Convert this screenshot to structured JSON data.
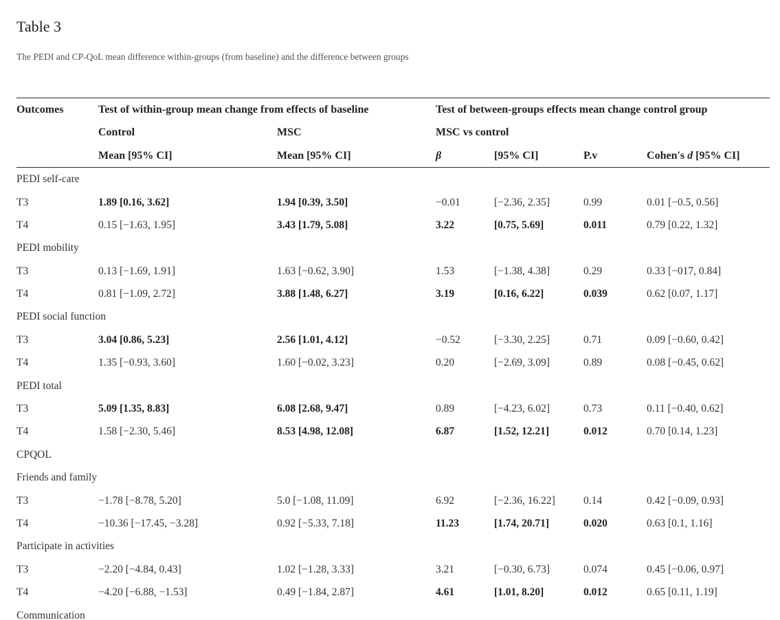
{
  "page": {
    "title": "Table 3",
    "caption": "The PEDI and CP-QoL mean difference within-groups (from baseline) and the difference between groups"
  },
  "colors": {
    "text": "#333333",
    "bold_text": "#222222",
    "rule": "#2b2b2b",
    "background": "#ffffff"
  },
  "table": {
    "header": {
      "outcomes": "Outcomes",
      "within_group_span": "Test of within-group mean change from effects of baseline",
      "between_groups_span": "Test of between-groups effects mean change control group",
      "control": "Control",
      "msc": "MSC",
      "msc_vs_control": "MSC vs control",
      "mean_ci_control": "Mean [95% CI]",
      "mean_ci_msc": "Mean [95% CI]",
      "beta": "β",
      "ci": "[95% CI]",
      "pv": "P.v",
      "cohens_prefix": "Cohen's ",
      "cohens_d": "d",
      "cohens_suffix": " [95% CI]"
    },
    "rows": [
      {
        "type": "section",
        "label": "PEDI self-care"
      },
      {
        "type": "data",
        "label": "T3",
        "cells": [
          {
            "t": "1.89 [0.16, 3.62]",
            "b": true
          },
          {
            "t": "1.94 [0.39, 3.50]",
            "b": true
          },
          {
            "t": "−0.01",
            "b": false
          },
          {
            "t": "[−2.36, 2.35]",
            "b": false
          },
          {
            "t": "0.99",
            "b": false
          },
          {
            "t": "0.01 [−0.5, 0.56]",
            "b": false
          }
        ]
      },
      {
        "type": "data",
        "label": "T4",
        "cells": [
          {
            "t": "0.15 [−1.63, 1.95]",
            "b": false
          },
          {
            "t": "3.43 [1.79, 5.08]",
            "b": true
          },
          {
            "t": "3.22",
            "b": true
          },
          {
            "t": "[0.75, 5.69]",
            "b": true
          },
          {
            "t": "0.011",
            "b": true
          },
          {
            "t": "0.79 [0.22, 1.32]",
            "b": false
          }
        ]
      },
      {
        "type": "section",
        "label": "PEDI mobility"
      },
      {
        "type": "data",
        "label": "T3",
        "cells": [
          {
            "t": "0.13 [−1.69, 1.91]",
            "b": false
          },
          {
            "t": "1.63 [−0.62, 3.90]",
            "b": false
          },
          {
            "t": "1.53",
            "b": false
          },
          {
            "t": "[−1.38, 4.38]",
            "b": false
          },
          {
            "t": "0.29",
            "b": false
          },
          {
            "t": "0.33 [−017, 0.84]",
            "b": false
          }
        ]
      },
      {
        "type": "data",
        "label": "T4",
        "cells": [
          {
            "t": "0.81 [−1.09, 2.72]",
            "b": false
          },
          {
            "t": "3.88 [1.48, 6.27]",
            "b": true
          },
          {
            "t": "3.19",
            "b": true
          },
          {
            "t": "[0.16, 6.22]",
            "b": true
          },
          {
            "t": "0.039",
            "b": true
          },
          {
            "t": "0.62 [0.07, 1.17]",
            "b": false
          }
        ]
      },
      {
        "type": "section",
        "label": "PEDI social function"
      },
      {
        "type": "data",
        "label": "T3",
        "cells": [
          {
            "t": "3.04 [0.86, 5.23]",
            "b": true
          },
          {
            "t": "2.56 [1.01, 4.12]",
            "b": true
          },
          {
            "t": "−0.52",
            "b": false
          },
          {
            "t": "[−3.30, 2.25]",
            "b": false
          },
          {
            "t": "0.71",
            "b": false
          },
          {
            "t": "0.09 [−0.60, 0.42]",
            "b": false
          }
        ]
      },
      {
        "type": "data",
        "label": "T4",
        "cells": [
          {
            "t": "1.35 [−0.93, 3.60]",
            "b": false
          },
          {
            "t": "1.60 [−0.02, 3.23]",
            "b": false
          },
          {
            "t": "0.20",
            "b": false
          },
          {
            "t": "[−2.69, 3.09]",
            "b": false
          },
          {
            "t": "0.89",
            "b": false
          },
          {
            "t": "0.08 [−0.45, 0.62]",
            "b": false
          }
        ]
      },
      {
        "type": "section",
        "label": "PEDI total"
      },
      {
        "type": "data",
        "label": "T3",
        "cells": [
          {
            "t": "5.09 [1.35, 8.83]",
            "b": true
          },
          {
            "t": "6.08 [2.68, 9.47]",
            "b": true
          },
          {
            "t": "0.89",
            "b": false
          },
          {
            "t": "[−4.23, 6.02]",
            "b": false
          },
          {
            "t": "0.73",
            "b": false
          },
          {
            "t": "0.11 [−0.40, 0.62]",
            "b": false
          }
        ]
      },
      {
        "type": "data",
        "label": "T4",
        "cells": [
          {
            "t": "1.58 [−2.30, 5.46]",
            "b": false
          },
          {
            "t": "8.53 [4.98, 12.08]",
            "b": true
          },
          {
            "t": "6.87",
            "b": true
          },
          {
            "t": "[1.52, 12.21]",
            "b": true
          },
          {
            "t": "0.012",
            "b": true
          },
          {
            "t": "0.70 [0.14, 1.23]",
            "b": false
          }
        ]
      },
      {
        "type": "section",
        "label": "CPQOL"
      },
      {
        "type": "section",
        "label": "Friends and family"
      },
      {
        "type": "data",
        "label": "T3",
        "cells": [
          {
            "t": "−1.78 [−8.78, 5.20]",
            "b": false
          },
          {
            "t": "5.0 [−1.08, 11.09]",
            "b": false
          },
          {
            "t": "6.92",
            "b": false
          },
          {
            "t": "[−2.36, 16.22]",
            "b": false
          },
          {
            "t": "0.14",
            "b": false
          },
          {
            "t": "0.42 [−0.09, 0.93]",
            "b": false
          }
        ]
      },
      {
        "type": "data",
        "label": "T4",
        "cells": [
          {
            "t": "−10.36 [−17.45, −3.28]",
            "b": false
          },
          {
            "t": "0.92 [−5.33, 7.18]",
            "b": false
          },
          {
            "t": "11.23",
            "b": true
          },
          {
            "t": "[1.74, 20.71]",
            "b": true
          },
          {
            "t": "0.020",
            "b": true
          },
          {
            "t": "0.63 [0.1, 1.16]",
            "b": false
          }
        ]
      },
      {
        "type": "section",
        "label": "Participate in activities"
      },
      {
        "type": "data",
        "label": "T3",
        "cells": [
          {
            "t": "−2.20 [−4.84, 0.43]",
            "b": false
          },
          {
            "t": "1.02 [−1.28, 3.33]",
            "b": false
          },
          {
            "t": "3.21",
            "b": false
          },
          {
            "t": "[−0.30, 6.73]",
            "b": false
          },
          {
            "t": "0.074",
            "b": false
          },
          {
            "t": "0.45 [−0.06, 0.97]",
            "b": false
          }
        ]
      },
      {
        "type": "data",
        "label": "T4",
        "cells": [
          {
            "t": "−4.20 [−6.88, −1.53]",
            "b": false
          },
          {
            "t": "0.49 [−1.84, 2.87]",
            "b": false
          },
          {
            "t": "4.61",
            "b": true
          },
          {
            "t": "[1.01, 8.20]",
            "b": true
          },
          {
            "t": "0.012",
            "b": true
          },
          {
            "t": "0.65 [0.11, 1.19]",
            "b": false
          }
        ]
      },
      {
        "type": "section",
        "label": "Communication"
      }
    ]
  }
}
